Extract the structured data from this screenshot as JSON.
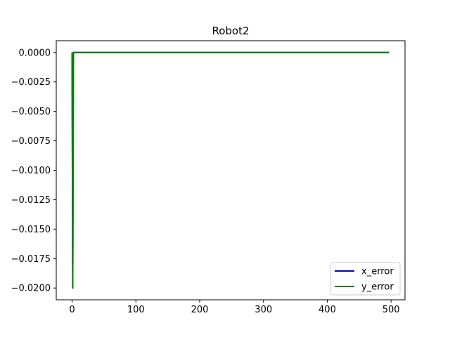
{
  "chart_data": {
    "type": "line",
    "title": "Robot2",
    "xlabel": "",
    "ylabel": "",
    "xlim": [
      -24.85,
      521.85
    ],
    "ylim": [
      -0.021,
      0.001
    ],
    "xticks": [
      0,
      100,
      200,
      300,
      400,
      500
    ],
    "xtick_labels": [
      "0",
      "100",
      "200",
      "300",
      "400",
      "500"
    ],
    "yticks": [
      0.0,
      -0.0025,
      -0.005,
      -0.0075,
      -0.01,
      -0.0125,
      -0.015,
      -0.0175,
      -0.02
    ],
    "ytick_labels": [
      "0.0000",
      "−0.0025",
      "−0.0050",
      "−0.0075",
      "−0.0100",
      "−0.0125",
      "−0.0150",
      "−0.0175",
      "−0.0200"
    ],
    "grid": false,
    "legend_position": "lower-right",
    "series": [
      {
        "name": "x_error",
        "color": "#0000cc",
        "x": [
          0,
          1,
          2,
          3,
          497
        ],
        "y": [
          0.0,
          -0.02,
          0.0,
          0.0,
          0.0
        ]
      },
      {
        "name": "y_error",
        "color": "#008000",
        "x": [
          0,
          1,
          2,
          3,
          497
        ],
        "y": [
          0.0,
          -0.02,
          0.0,
          0.0,
          0.0
        ]
      }
    ]
  }
}
